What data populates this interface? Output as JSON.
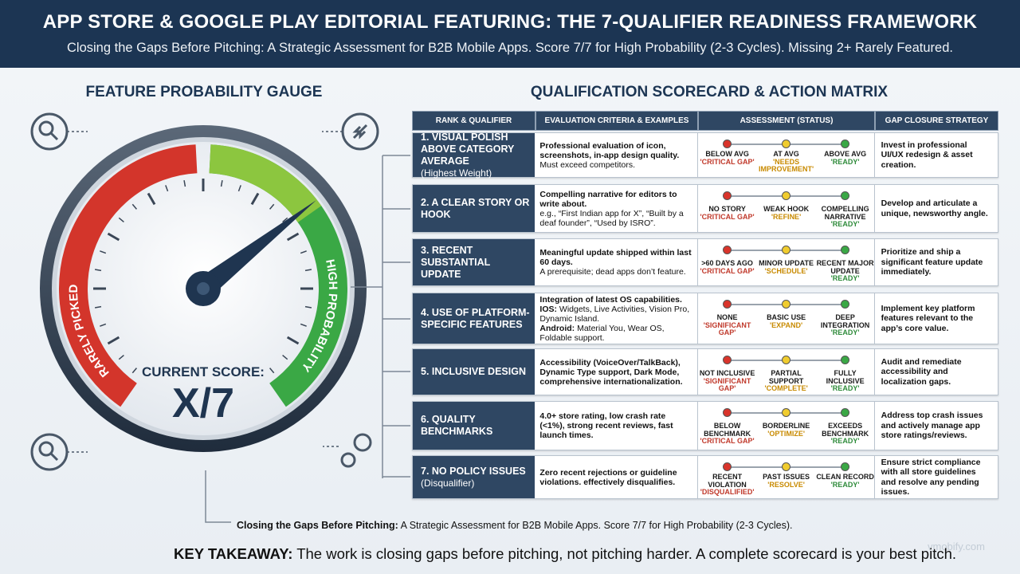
{
  "header": {
    "title": "APP STORE & GOOGLE PLAY EDITORIAL FEATURING: THE 7-QUALIFIER READINESS FRAMEWORK",
    "subtitle": "Closing the Gaps Before Pitching: A Strategic Assessment for B2B Mobile Apps. Score 7/7 for High Probability (2-3 Cycles). Missing 2+ Rarely Featured."
  },
  "gauge": {
    "title": "FEATURE PROBABILITY GAUGE",
    "low_label": "RARELY PICKED",
    "high_label": "HIGH PROBABILITY",
    "score_label": "CURRENT SCORE:",
    "score": "X/7"
  },
  "scorecard": {
    "title": "QUALIFICATION SCORECARD & ACTION MATRIX",
    "columns": [
      "RANK & QUALIFIER",
      "EVALUATION CRITERIA & EXAMPLES",
      "ASSESSMENT (STATUS)",
      "GAP CLOSURE STRATEGY"
    ],
    "rows": [
      {
        "qualifier": "1. VISUAL POLISH ABOVE CATEGORY AVERAGE",
        "note": "(Highest Weight)",
        "criteria": [
          {
            "text": "Professional evaluation of icon, screenshots, in-app design quality.",
            "bold": true
          },
          {
            "text": "Must exceed competitors.",
            "bold": false
          }
        ],
        "statuses": [
          {
            "label": "BELOW AVG",
            "tag": "'CRITICAL GAP'"
          },
          {
            "label": "AT AVG",
            "tag": "'NEEDS IMPROVEMENT'"
          },
          {
            "label": "ABOVE AVG",
            "tag": "'READY'"
          }
        ],
        "strategy": "Invest in professional UI/UX redesign & asset creation."
      },
      {
        "qualifier": "2. A CLEAR STORY OR HOOK",
        "note": null,
        "criteria": [
          {
            "text": "Compelling narrative for editors to write about.",
            "bold": true
          },
          {
            "text": "e.g., “First Indian app for X”, “Built by a deaf founder”, “Used by ISRO”.",
            "bold": false
          }
        ],
        "statuses": [
          {
            "label": "NO STORY",
            "tag": "'CRITICAL GAP'"
          },
          {
            "label": "WEAK HOOK",
            "tag": "'REFINE'"
          },
          {
            "label": "COMPELLING NARRATIVE",
            "tag": "'READY'"
          }
        ],
        "strategy": "Develop and articulate a unique, newsworthy angle."
      },
      {
        "qualifier": "3. RECENT SUBSTANTIAL UPDATE",
        "note": null,
        "criteria": [
          {
            "text": "Meaningful update shipped within last 60 days.",
            "bold": true
          },
          {
            "text": "A prerequisite; dead apps don’t feature.",
            "bold": false
          }
        ],
        "statuses": [
          {
            "label": ">60 DAYS AGO",
            "tag": "'CRITICAL GAP'"
          },
          {
            "label": "MINOR UPDATE",
            "tag": "'SCHEDULE'"
          },
          {
            "label": "RECENT MAJOR UPDATE",
            "tag": "'READY'"
          }
        ],
        "strategy": "Prioritize and ship a significant feature update immediately."
      },
      {
        "qualifier": "4. USE OF PLATFORM-SPECIFIC FEATURES",
        "note": null,
        "criteria": [
          {
            "text": "Integration of latest OS capabilities.",
            "bold": true
          },
          {
            "text": "IOS:",
            "bold": true
          },
          {
            "text": " Widgets, Live Activities, Vision Pro, Dynamic Island.",
            "bold": false
          },
          {
            "text": "Android:",
            "bold": true
          },
          {
            "text": " Material You, Wear OS, Foldable support.",
            "bold": false
          }
        ],
        "statuses": [
          {
            "label": "NONE",
            "tag": "'SIGNIFICANT GAP'"
          },
          {
            "label": "BASIC USE",
            "tag": "'EXPAND'"
          },
          {
            "label": "DEEP INTEGRATION",
            "tag": "'READY'"
          }
        ],
        "strategy": "Implement key platform features relevant to the app’s core value."
      },
      {
        "qualifier": "5. INCLUSIVE DESIGN",
        "note": null,
        "criteria": [
          {
            "text": "Accessibility (VoiceOver/TalkBack), Dynamic Type support, Dark Mode, comprehensive internationalization.",
            "bold": true
          }
        ],
        "statuses": [
          {
            "label": "NOT INCLUSIVE",
            "tag": "'SIGNIFICANT GAP'"
          },
          {
            "label": "PARTIAL SUPPORT",
            "tag": "'COMPLETE'"
          },
          {
            "label": "FULLY INCLUSIVE",
            "tag": "'READY'"
          }
        ],
        "strategy": "Audit and remediate accessibility and localization gaps."
      },
      {
        "qualifier": "6. QUALITY BENCHMARKS",
        "note": null,
        "criteria": [
          {
            "text": "4.0+ store rating, low crash rate (<1%), strong recent reviews, fast launch times.",
            "bold": true
          }
        ],
        "statuses": [
          {
            "label": "BELOW BENCHMARK",
            "tag": "'CRITICAL GAP'"
          },
          {
            "label": "BORDERLINE",
            "tag": "'OPTIMIZE'"
          },
          {
            "label": "EXCEEDS BENCHMARK",
            "tag": "'READY'"
          }
        ],
        "strategy": "Address top crash issues and actively manage app store ratings/reviews."
      },
      {
        "qualifier": "7. NO POLICY ISSUES",
        "note": "(Disqualifier)",
        "criteria": [
          {
            "text": "Zero recent rejections or guideline violations. effectively disqualifies.",
            "bold": true
          }
        ],
        "statuses": [
          {
            "label": "RECENT VIOLATION",
            "tag": "'DISQUALIFIED'"
          },
          {
            "label": "PAST ISSUES",
            "tag": "'RESOLVE'"
          },
          {
            "label": "CLEAN RECORD",
            "tag": "'READY'"
          }
        ],
        "strategy": "Ensure strict compliance with all store guidelines and resolve any pending issues."
      }
    ]
  },
  "footer": {
    "caption_bold": "Closing the Gaps Before Pitching:",
    "caption_rest": " A Strategic Assessment for B2B Mobile Apps. Score 7/7 for High Probability (2-3 Cycles).",
    "takeaway_bold": "KEY TAKEAWAY:",
    "takeaway_rest": " The work is closing gaps before pitching, not pitching harder. A complete scorecard is your best pitch.",
    "watermark": "vmobify.com"
  }
}
